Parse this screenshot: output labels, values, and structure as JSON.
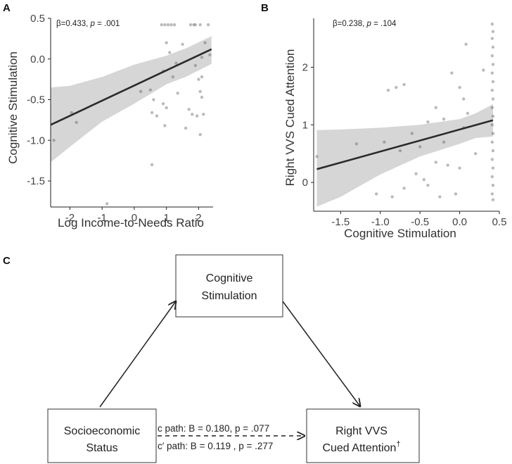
{
  "panels": {
    "a": "A",
    "b": "B",
    "c": "C"
  },
  "chart_data": [
    {
      "type": "scatter",
      "title": "",
      "annotation_prefix": "β=0.433, ",
      "annotation_p": "p",
      "annotation_suffix": " = .001",
      "xlabel": "Log Income-to-Needs Ratio",
      "ylabel": "Cognitive Stimulation",
      "xlim": [
        -2.6,
        2.45
      ],
      "ylim": [
        -1.82,
        0.5
      ],
      "xticks": [
        -2,
        -1,
        0,
        1,
        2
      ],
      "yticks": [
        -1.5,
        -1.0,
        -0.5,
        0.0,
        0.5
      ],
      "xtick_labels": [
        "-2",
        "-1",
        "0",
        "1",
        "2"
      ],
      "ytick_labels": [
        "-1.5",
        "-1.0",
        "-0.5",
        "0.0",
        "0.5"
      ],
      "fit_line": {
        "x": [
          -2.6,
          2.4
        ],
        "y": [
          -0.81,
          0.12
        ]
      },
      "ci_band": {
        "x": [
          -2.6,
          -2.0,
          -1.0,
          0.0,
          1.0,
          1.6,
          2.4
        ],
        "upper": [
          -0.35,
          -0.33,
          -0.22,
          -0.07,
          0.04,
          0.13,
          0.28
        ],
        "lower": [
          -1.27,
          -1.08,
          -0.77,
          -0.55,
          -0.31,
          -0.22,
          -0.06
        ]
      },
      "points": [
        {
          "x": 0.85,
          "y": 0.42
        },
        {
          "x": 0.95,
          "y": 0.42
        },
        {
          "x": 1.05,
          "y": 0.42
        },
        {
          "x": 1.15,
          "y": 0.42
        },
        {
          "x": 1.25,
          "y": 0.42
        },
        {
          "x": 1.75,
          "y": 0.42
        },
        {
          "x": 1.85,
          "y": 0.42
        },
        {
          "x": 1.9,
          "y": 0.42
        },
        {
          "x": 2.05,
          "y": 0.42
        },
        {
          "x": 2.3,
          "y": 0.42
        },
        {
          "x": 1.0,
          "y": 0.2
        },
        {
          "x": 1.5,
          "y": 0.18
        },
        {
          "x": 2.2,
          "y": 0.2
        },
        {
          "x": 1.1,
          "y": 0.08
        },
        {
          "x": 2.1,
          "y": 0.02
        },
        {
          "x": 2.35,
          "y": 0.05
        },
        {
          "x": 1.3,
          "y": -0.05
        },
        {
          "x": 0.9,
          "y": -0.15
        },
        {
          "x": 1.9,
          "y": -0.08
        },
        {
          "x": 1.2,
          "y": -0.22
        },
        {
          "x": 2.0,
          "y": -0.25
        },
        {
          "x": 2.1,
          "y": -0.22
        },
        {
          "x": 0.2,
          "y": -0.4
        },
        {
          "x": 0.5,
          "y": -0.38
        },
        {
          "x": 1.35,
          "y": -0.42
        },
        {
          "x": 2.05,
          "y": -0.4
        },
        {
          "x": 2.1,
          "y": -0.47
        },
        {
          "x": 0.6,
          "y": -0.5
        },
        {
          "x": 0.9,
          "y": -0.55
        },
        {
          "x": 1.0,
          "y": -0.6
        },
        {
          "x": 1.7,
          "y": -0.62
        },
        {
          "x": 0.55,
          "y": -0.66
        },
        {
          "x": 0.7,
          "y": -0.7
        },
        {
          "x": 1.8,
          "y": -0.68
        },
        {
          "x": 1.95,
          "y": -0.7
        },
        {
          "x": 2.15,
          "y": -0.68
        },
        {
          "x": 0.95,
          "y": -0.82
        },
        {
          "x": 1.6,
          "y": -0.85
        },
        {
          "x": 2.05,
          "y": -0.93
        },
        {
          "x": -1.95,
          "y": -0.66
        },
        {
          "x": -1.8,
          "y": -0.78
        },
        {
          "x": -2.5,
          "y": -1.0
        },
        {
          "x": 0.55,
          "y": -1.3
        },
        {
          "x": -0.85,
          "y": -1.78
        }
      ]
    },
    {
      "type": "scatter",
      "title": "",
      "annotation_prefix": "β=0.238, ",
      "annotation_p": "p",
      "annotation_suffix": " = .104",
      "xlabel": "Cognitive Stimulation",
      "ylabel": "Right VVS Cued Attention",
      "xlim": [
        -1.84,
        0.5
      ],
      "ylim": [
        -0.5,
        2.85
      ],
      "xticks": [
        -1.5,
        -1.0,
        -0.5,
        0.0,
        0.5
      ],
      "yticks": [
        0,
        1,
        2
      ],
      "xtick_labels": [
        "-1.5",
        "-1.0",
        "-0.5",
        "0.0",
        "0.5"
      ],
      "ytick_labels": [
        "0",
        "1",
        "2"
      ],
      "fit_line": {
        "x": [
          -1.8,
          0.42
        ],
        "y": [
          0.23,
          1.08
        ]
      },
      "ci_band": {
        "x": [
          -1.8,
          -1.5,
          -1.0,
          -0.5,
          0.0,
          0.2,
          0.42
        ],
        "upper": [
          0.91,
          0.92,
          0.95,
          1.0,
          1.1,
          1.2,
          1.36
        ],
        "lower": [
          -0.42,
          -0.25,
          0.14,
          0.45,
          0.67,
          0.77,
          0.8
        ]
      },
      "points": [
        {
          "x": 0.41,
          "y": 2.75
        },
        {
          "x": 0.42,
          "y": 2.62
        },
        {
          "x": 0.41,
          "y": 2.5
        },
        {
          "x": 0.42,
          "y": 2.35
        },
        {
          "x": 0.41,
          "y": 2.2
        },
        {
          "x": 0.42,
          "y": 2.05
        },
        {
          "x": 0.41,
          "y": 1.9
        },
        {
          "x": 0.42,
          "y": 1.75
        },
        {
          "x": 0.41,
          "y": 1.6
        },
        {
          "x": 0.42,
          "y": 1.45
        },
        {
          "x": 0.41,
          "y": 1.3
        },
        {
          "x": 0.42,
          "y": 1.15
        },
        {
          "x": 0.41,
          "y": 1.0
        },
        {
          "x": 0.42,
          "y": 0.85
        },
        {
          "x": 0.41,
          "y": 0.7
        },
        {
          "x": 0.42,
          "y": 0.55
        },
        {
          "x": 0.41,
          "y": 0.4
        },
        {
          "x": 0.42,
          "y": 0.25
        },
        {
          "x": 0.41,
          "y": 0.1
        },
        {
          "x": 0.42,
          "y": -0.05
        },
        {
          "x": 0.41,
          "y": -0.2
        },
        {
          "x": 0.42,
          "y": -0.3
        },
        {
          "x": 0.08,
          "y": 2.4
        },
        {
          "x": 0.3,
          "y": 1.95
        },
        {
          "x": -0.1,
          "y": 1.9
        },
        {
          "x": -0.7,
          "y": 1.7
        },
        {
          "x": -0.8,
          "y": 1.65
        },
        {
          "x": -0.9,
          "y": 1.6
        },
        {
          "x": 0.0,
          "y": 1.65
        },
        {
          "x": -0.3,
          "y": 1.3
        },
        {
          "x": -0.2,
          "y": 1.1
        },
        {
          "x": -0.4,
          "y": 1.05
        },
        {
          "x": 0.05,
          "y": 1.45
        },
        {
          "x": 0.1,
          "y": 1.2
        },
        {
          "x": -0.6,
          "y": 0.85
        },
        {
          "x": -0.2,
          "y": 0.7
        },
        {
          "x": -0.5,
          "y": 0.62
        },
        {
          "x": -0.75,
          "y": 0.55
        },
        {
          "x": 0.05,
          "y": 0.95
        },
        {
          "x": 0.2,
          "y": 0.5
        },
        {
          "x": -1.3,
          "y": 0.67
        },
        {
          "x": -0.95,
          "y": 0.7
        },
        {
          "x": -0.3,
          "y": 0.35
        },
        {
          "x": -0.15,
          "y": 0.3
        },
        {
          "x": 0.0,
          "y": 0.25
        },
        {
          "x": -0.55,
          "y": 0.15
        },
        {
          "x": -0.45,
          "y": 0.05
        },
        {
          "x": -0.05,
          "y": -0.2
        },
        {
          "x": -0.7,
          "y": -0.1
        },
        {
          "x": -0.4,
          "y": -0.05
        },
        {
          "x": -1.05,
          "y": -0.2
        },
        {
          "x": -0.85,
          "y": -0.25
        },
        {
          "x": -0.25,
          "y": -0.25
        },
        {
          "x": -1.8,
          "y": 0.45
        }
      ]
    }
  ],
  "mediation": {
    "mediator_line1": "Cognitive",
    "mediator_line2": "Stimulation",
    "predictor_line1": "Socioeconomic",
    "predictor_line2": "Status",
    "outcome_line1": "Right VVS",
    "outcome_line2": "Cued Attention",
    "outcome_dagger": "†",
    "c_path": "c path: B = 0.180, p = .077",
    "c_prime_path": "c′ path: B = 0.119 , p = .277"
  }
}
